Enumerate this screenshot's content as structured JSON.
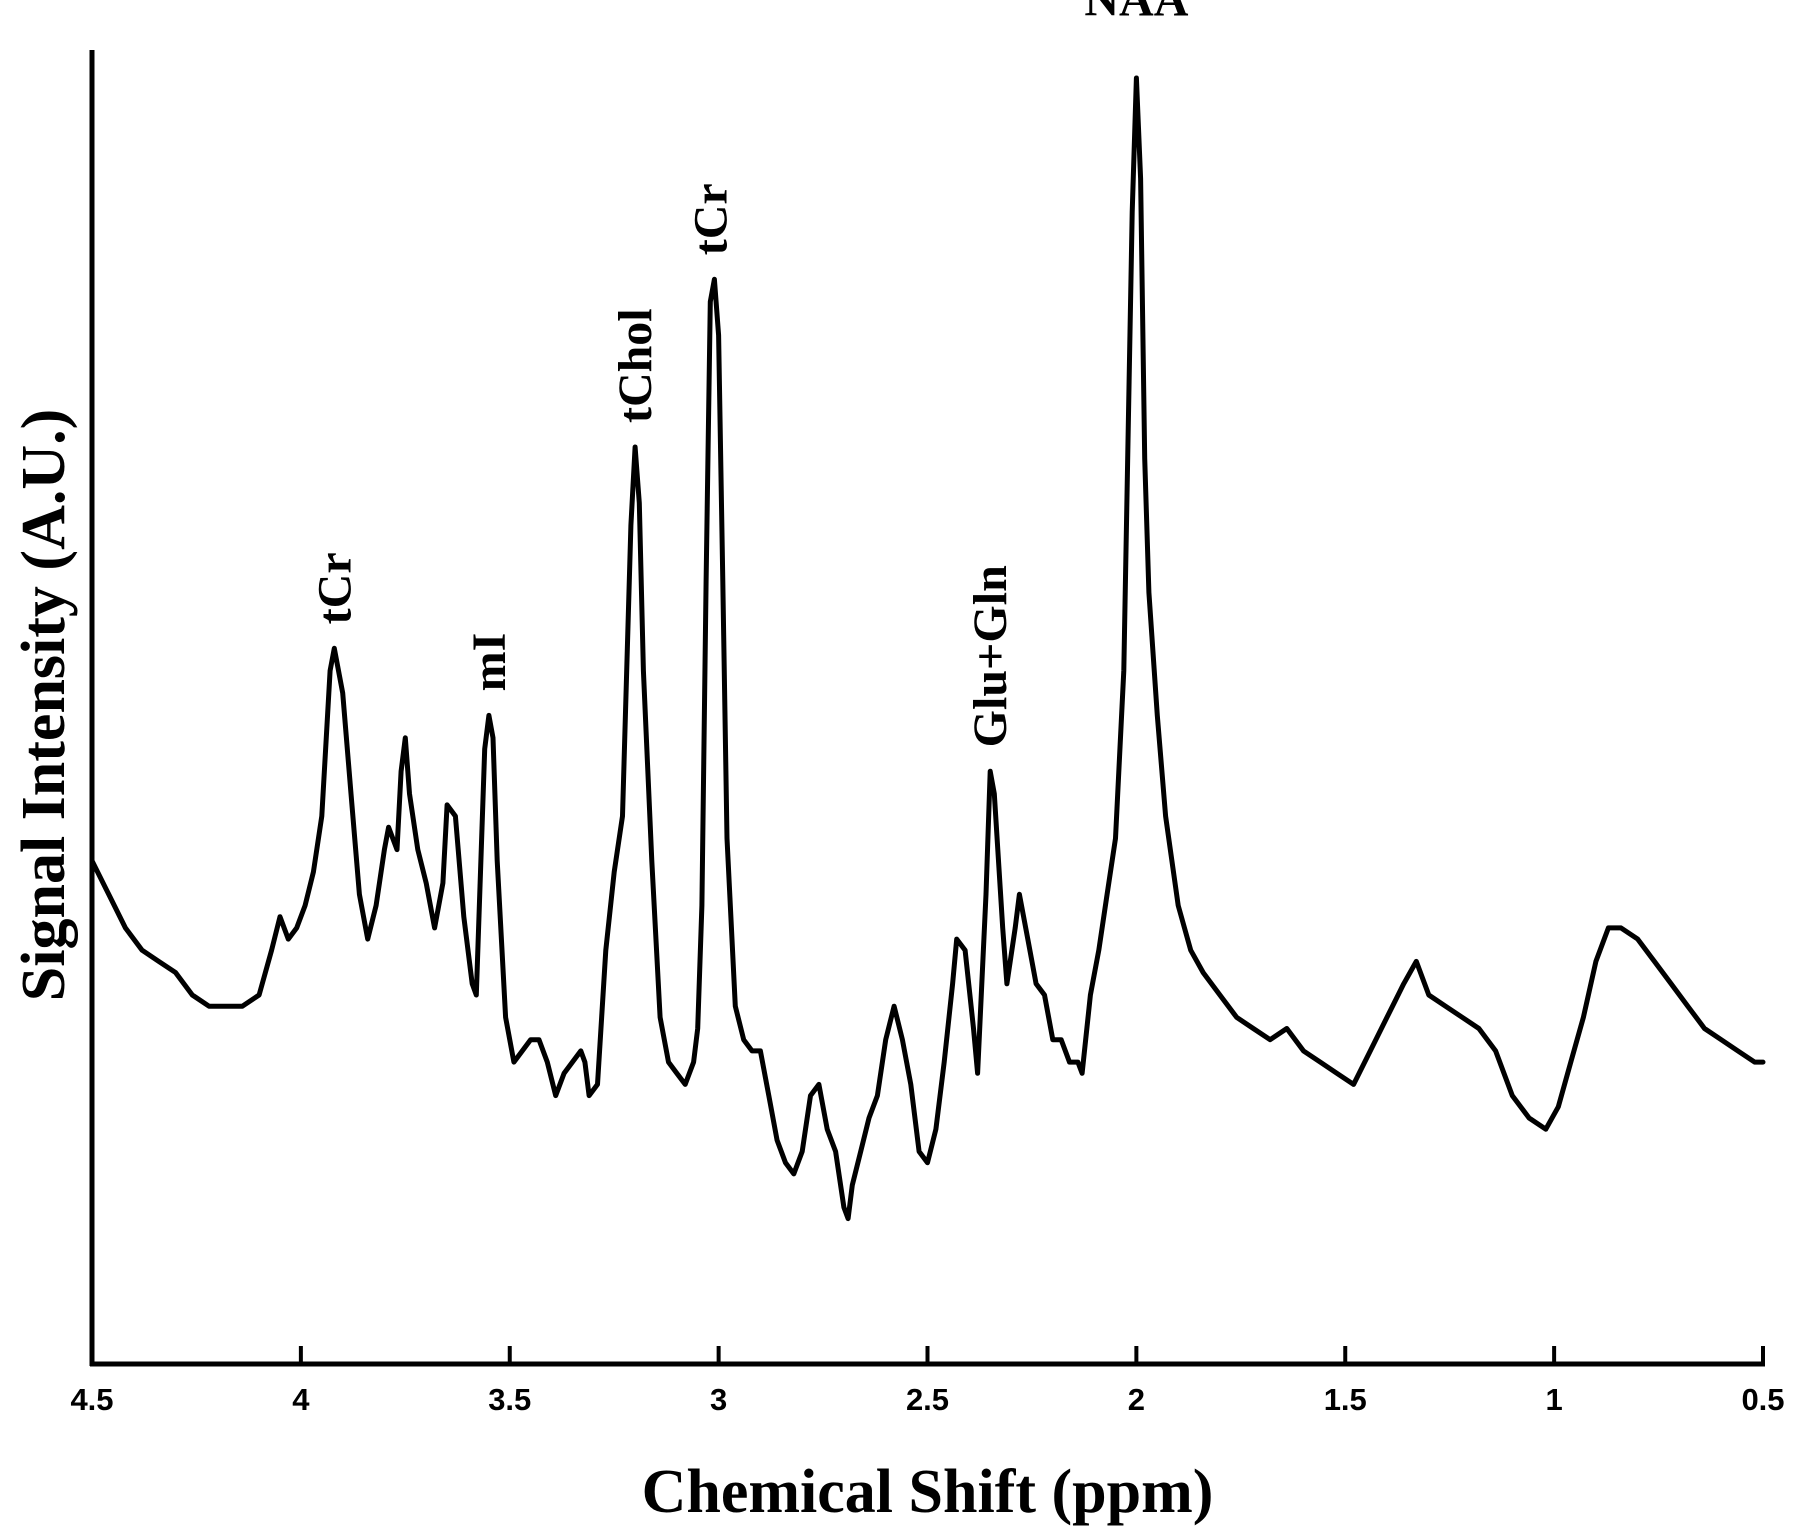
{
  "chart_data": {
    "type": "line",
    "xlabel": "Chemical Shift (ppm)",
    "ylabel": "Signal Intensity (A.U.)",
    "xlim": [
      4.5,
      0.5
    ],
    "ylim": [
      -0.15,
      1.0
    ],
    "x_reversed": true,
    "y_ticks_shown": false,
    "grid": false,
    "legend": "none",
    "xticks": [
      {
        "value": 4.5,
        "label": "4.5"
      },
      {
        "value": 4.0,
        "label": "4"
      },
      {
        "value": 3.5,
        "label": "3.5"
      },
      {
        "value": 3.0,
        "label": "3"
      },
      {
        "value": 2.5,
        "label": "2.5"
      },
      {
        "value": 2.0,
        "label": "2"
      },
      {
        "value": 1.5,
        "label": "1.5"
      },
      {
        "value": 1.0,
        "label": "1"
      },
      {
        "value": 0.5,
        "label": "0.5"
      }
    ],
    "annotations": [
      {
        "text": "tCr",
        "x": 3.92,
        "y": 0.49,
        "rotated": true
      },
      {
        "text": "mI",
        "x": 3.55,
        "y": 0.43,
        "rotated": true
      },
      {
        "text": "tChol",
        "x": 3.2,
        "y": 0.67,
        "rotated": true
      },
      {
        "text": "tCr",
        "x": 3.02,
        "y": 0.82,
        "rotated": true
      },
      {
        "text": "Glu+Gln",
        "x": 2.35,
        "y": 0.38,
        "rotated": true
      },
      {
        "text": "NAA",
        "x": 2.0,
        "y": 1.04,
        "rotated": false
      }
    ],
    "series": [
      {
        "color": "#000000",
        "points": [
          [
            4.5,
            0.3
          ],
          [
            4.46,
            0.27
          ],
          [
            4.42,
            0.24
          ],
          [
            4.38,
            0.22
          ],
          [
            4.34,
            0.21
          ],
          [
            4.3,
            0.2
          ],
          [
            4.26,
            0.18
          ],
          [
            4.22,
            0.17
          ],
          [
            4.18,
            0.17
          ],
          [
            4.14,
            0.17
          ],
          [
            4.1,
            0.18
          ],
          [
            4.07,
            0.22
          ],
          [
            4.05,
            0.25
          ],
          [
            4.03,
            0.23
          ],
          [
            4.01,
            0.24
          ],
          [
            3.99,
            0.26
          ],
          [
            3.97,
            0.29
          ],
          [
            3.95,
            0.34
          ],
          [
            3.93,
            0.47
          ],
          [
            3.92,
            0.49
          ],
          [
            3.9,
            0.45
          ],
          [
            3.88,
            0.36
          ],
          [
            3.86,
            0.27
          ],
          [
            3.84,
            0.23
          ],
          [
            3.82,
            0.26
          ],
          [
            3.8,
            0.31
          ],
          [
            3.79,
            0.33
          ],
          [
            3.77,
            0.31
          ],
          [
            3.76,
            0.38
          ],
          [
            3.75,
            0.41
          ],
          [
            3.74,
            0.36
          ],
          [
            3.72,
            0.31
          ],
          [
            3.7,
            0.28
          ],
          [
            3.68,
            0.24
          ],
          [
            3.66,
            0.28
          ],
          [
            3.65,
            0.35
          ],
          [
            3.63,
            0.34
          ],
          [
            3.61,
            0.25
          ],
          [
            3.59,
            0.19
          ],
          [
            3.58,
            0.18
          ],
          [
            3.57,
            0.29
          ],
          [
            3.56,
            0.4
          ],
          [
            3.55,
            0.43
          ],
          [
            3.54,
            0.41
          ],
          [
            3.53,
            0.3
          ],
          [
            3.51,
            0.16
          ],
          [
            3.49,
            0.12
          ],
          [
            3.47,
            0.13
          ],
          [
            3.45,
            0.14
          ],
          [
            3.43,
            0.14
          ],
          [
            3.41,
            0.12
          ],
          [
            3.39,
            0.09
          ],
          [
            3.37,
            0.11
          ],
          [
            3.35,
            0.12
          ],
          [
            3.33,
            0.13
          ],
          [
            3.32,
            0.12
          ],
          [
            3.31,
            0.09
          ],
          [
            3.29,
            0.1
          ],
          [
            3.27,
            0.22
          ],
          [
            3.25,
            0.29
          ],
          [
            3.23,
            0.34
          ],
          [
            3.21,
            0.6
          ],
          [
            3.2,
            0.67
          ],
          [
            3.19,
            0.62
          ],
          [
            3.18,
            0.47
          ],
          [
            3.16,
            0.3
          ],
          [
            3.14,
            0.16
          ],
          [
            3.12,
            0.12
          ],
          [
            3.1,
            0.11
          ],
          [
            3.08,
            0.1
          ],
          [
            3.06,
            0.12
          ],
          [
            3.05,
            0.15
          ],
          [
            3.04,
            0.26
          ],
          [
            3.03,
            0.55
          ],
          [
            3.02,
            0.8
          ],
          [
            3.01,
            0.82
          ],
          [
            3.0,
            0.77
          ],
          [
            2.99,
            0.55
          ],
          [
            2.98,
            0.32
          ],
          [
            2.96,
            0.17
          ],
          [
            2.94,
            0.14
          ],
          [
            2.92,
            0.13
          ],
          [
            2.9,
            0.13
          ],
          [
            2.88,
            0.09
          ],
          [
            2.86,
            0.05
          ],
          [
            2.84,
            0.03
          ],
          [
            2.82,
            0.02
          ],
          [
            2.8,
            0.04
          ],
          [
            2.78,
            0.09
          ],
          [
            2.76,
            0.1
          ],
          [
            2.74,
            0.06
          ],
          [
            2.72,
            0.04
          ],
          [
            2.7,
            -0.01
          ],
          [
            2.69,
            -0.02
          ],
          [
            2.68,
            0.01
          ],
          [
            2.66,
            0.04
          ],
          [
            2.64,
            0.07
          ],
          [
            2.62,
            0.09
          ],
          [
            2.6,
            0.14
          ],
          [
            2.58,
            0.17
          ],
          [
            2.56,
            0.14
          ],
          [
            2.54,
            0.1
          ],
          [
            2.52,
            0.04
          ],
          [
            2.5,
            0.03
          ],
          [
            2.48,
            0.06
          ],
          [
            2.46,
            0.12
          ],
          [
            2.44,
            0.19
          ],
          [
            2.43,
            0.23
          ],
          [
            2.41,
            0.22
          ],
          [
            2.39,
            0.15
          ],
          [
            2.38,
            0.11
          ],
          [
            2.36,
            0.27
          ],
          [
            2.35,
            0.38
          ],
          [
            2.34,
            0.36
          ],
          [
            2.32,
            0.24
          ],
          [
            2.31,
            0.19
          ],
          [
            2.29,
            0.24
          ],
          [
            2.28,
            0.27
          ],
          [
            2.26,
            0.23
          ],
          [
            2.24,
            0.19
          ],
          [
            2.22,
            0.18
          ],
          [
            2.2,
            0.14
          ],
          [
            2.18,
            0.14
          ],
          [
            2.16,
            0.12
          ],
          [
            2.14,
            0.12
          ],
          [
            2.13,
            0.11
          ],
          [
            2.11,
            0.18
          ],
          [
            2.09,
            0.22
          ],
          [
            2.07,
            0.27
          ],
          [
            2.05,
            0.32
          ],
          [
            2.03,
            0.47
          ],
          [
            2.01,
            0.88
          ],
          [
            2.0,
            1.0
          ],
          [
            1.99,
            0.91
          ],
          [
            1.98,
            0.66
          ],
          [
            1.97,
            0.54
          ],
          [
            1.95,
            0.43
          ],
          [
            1.93,
            0.34
          ],
          [
            1.9,
            0.26
          ],
          [
            1.87,
            0.22
          ],
          [
            1.84,
            0.2
          ],
          [
            1.8,
            0.18
          ],
          [
            1.76,
            0.16
          ],
          [
            1.72,
            0.15
          ],
          [
            1.68,
            0.14
          ],
          [
            1.64,
            0.15
          ],
          [
            1.6,
            0.13
          ],
          [
            1.56,
            0.12
          ],
          [
            1.52,
            0.11
          ],
          [
            1.48,
            0.1
          ],
          [
            1.44,
            0.13
          ],
          [
            1.4,
            0.16
          ],
          [
            1.36,
            0.19
          ],
          [
            1.33,
            0.21
          ],
          [
            1.3,
            0.18
          ],
          [
            1.26,
            0.17
          ],
          [
            1.22,
            0.16
          ],
          [
            1.18,
            0.15
          ],
          [
            1.14,
            0.13
          ],
          [
            1.1,
            0.09
          ],
          [
            1.06,
            0.07
          ],
          [
            1.02,
            0.06
          ],
          [
            0.99,
            0.08
          ],
          [
            0.96,
            0.12
          ],
          [
            0.93,
            0.16
          ],
          [
            0.9,
            0.21
          ],
          [
            0.87,
            0.24
          ],
          [
            0.84,
            0.24
          ],
          [
            0.8,
            0.23
          ],
          [
            0.76,
            0.21
          ],
          [
            0.72,
            0.19
          ],
          [
            0.68,
            0.17
          ],
          [
            0.64,
            0.15
          ],
          [
            0.6,
            0.14
          ],
          [
            0.56,
            0.13
          ],
          [
            0.52,
            0.12
          ],
          [
            0.5,
            0.12
          ]
        ]
      }
    ]
  }
}
